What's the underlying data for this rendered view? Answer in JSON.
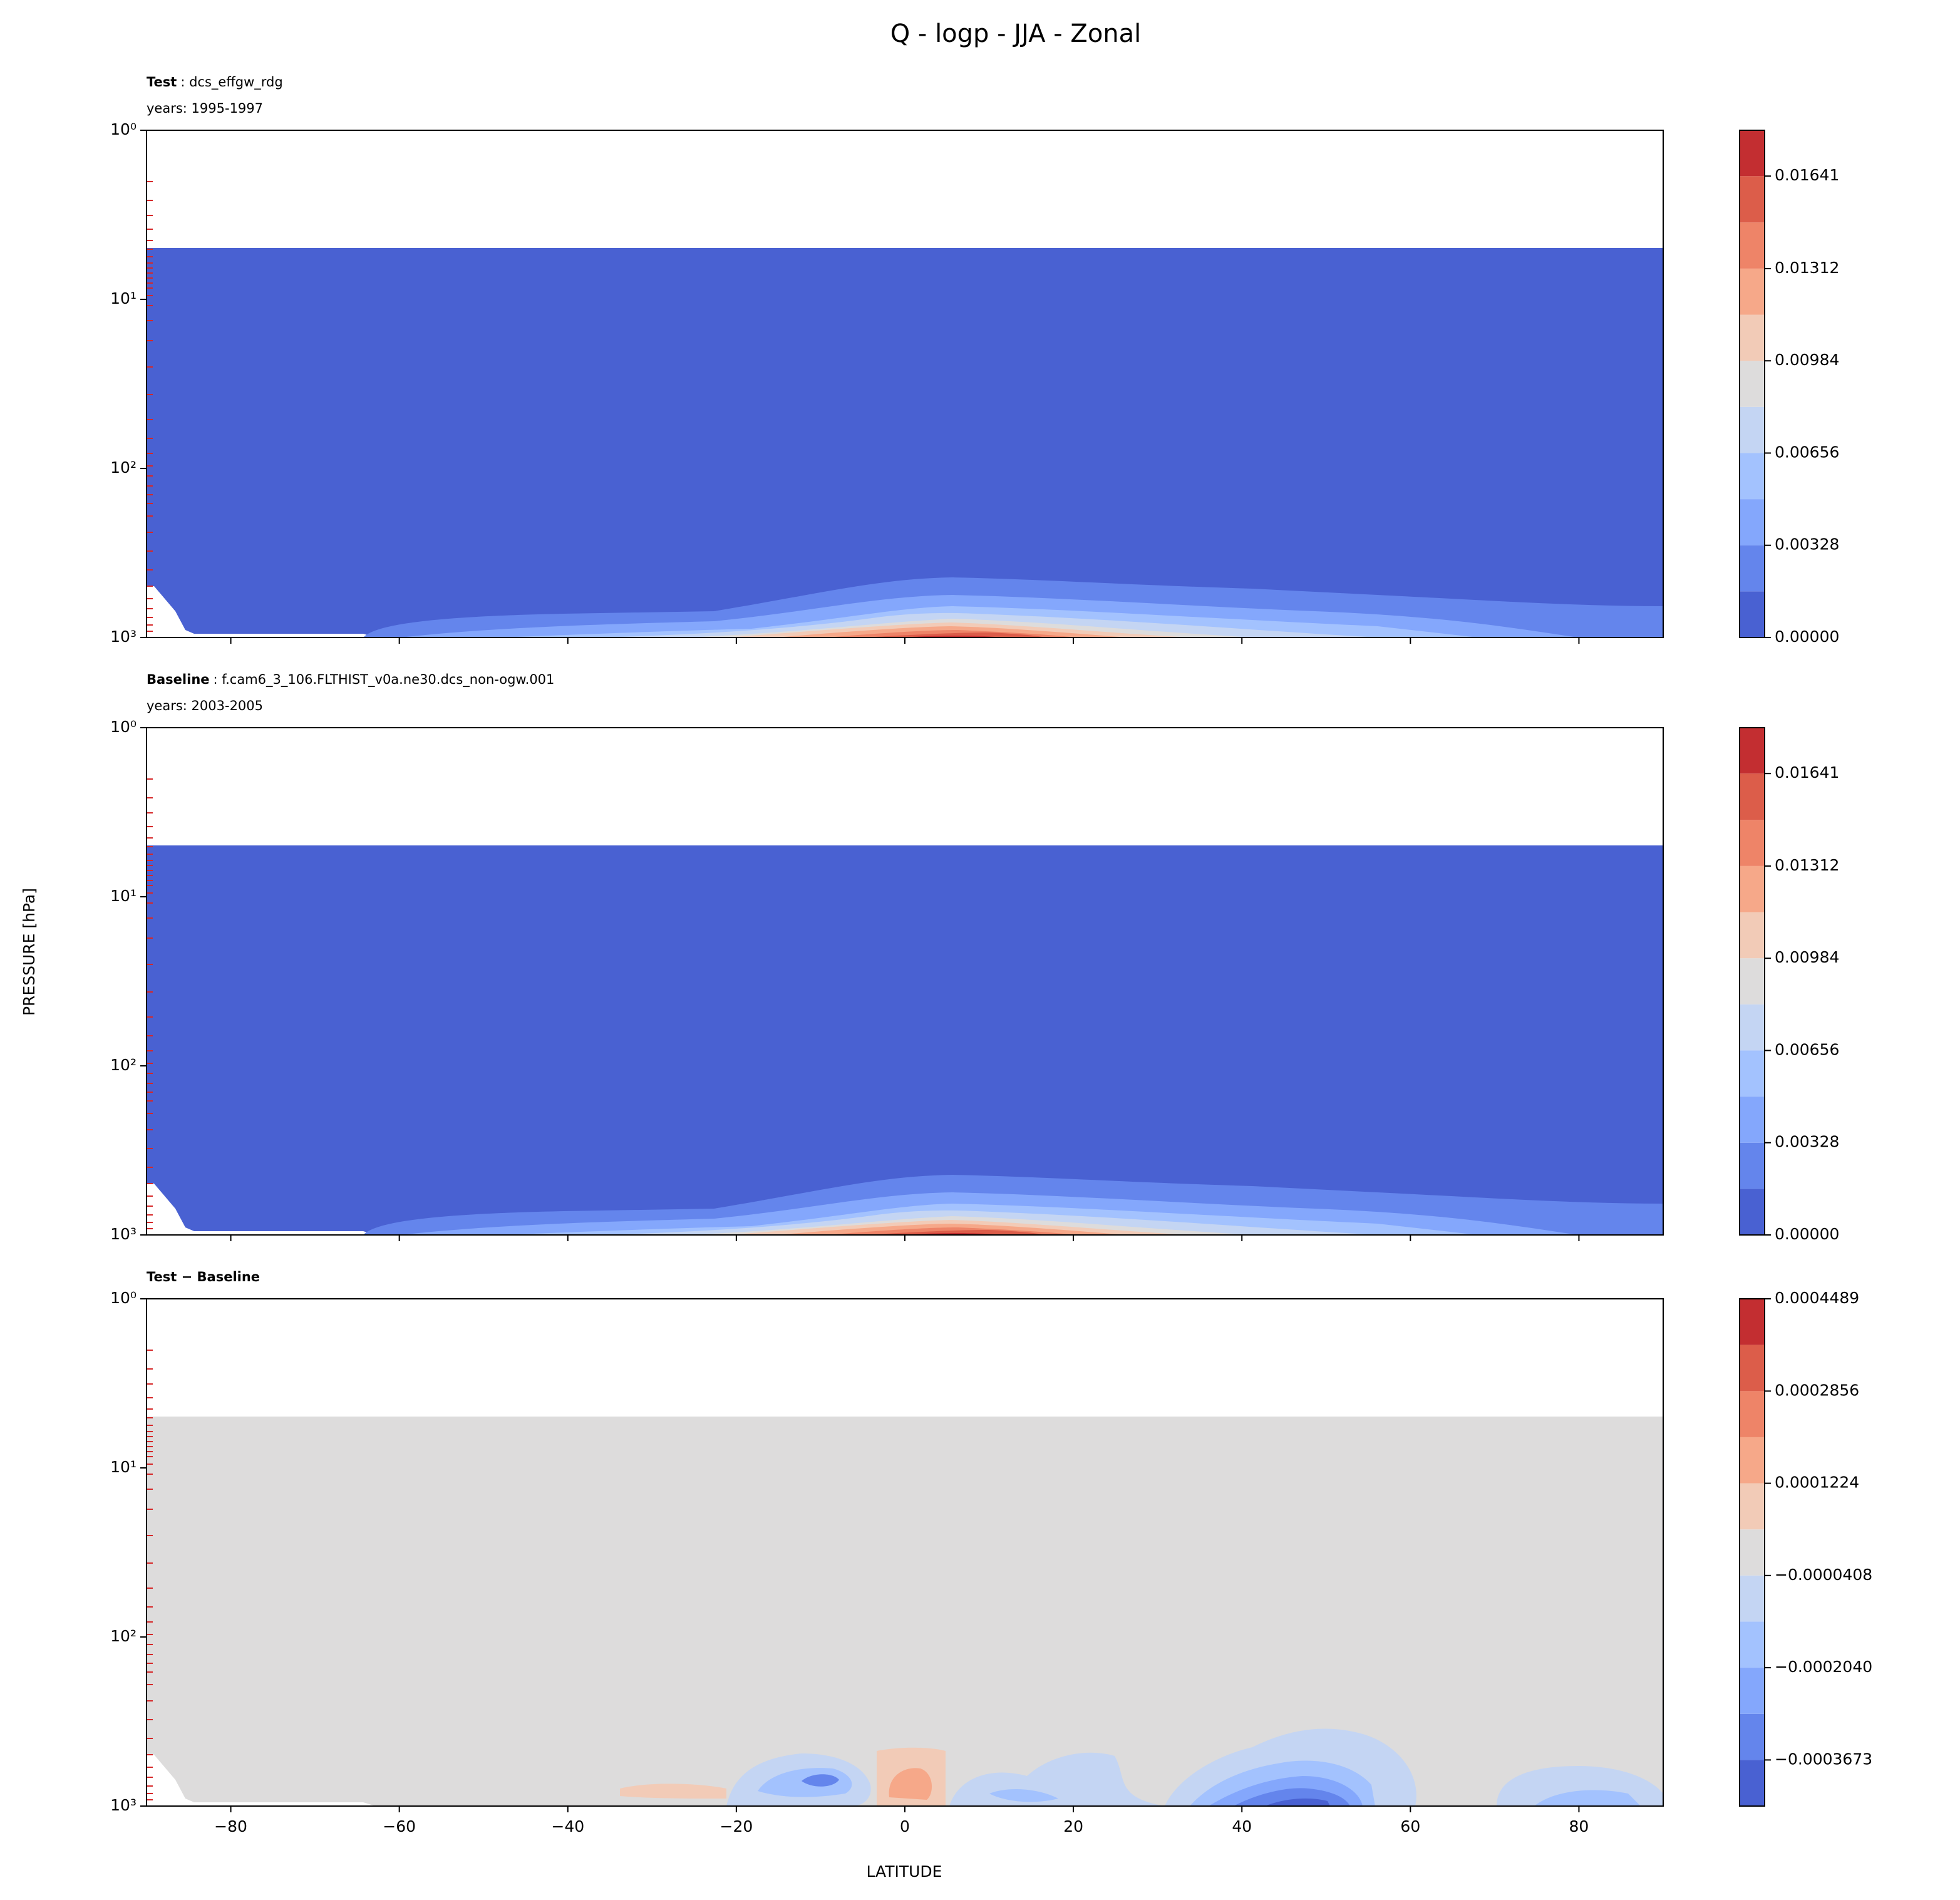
{
  "title": "Q - logp - JJA - Zonal",
  "ylabel": "PRESSURE [hPa]",
  "xlabel": "LATITUDE",
  "chart_data": [
    {
      "type": "contourf",
      "title_bold": "Test",
      "title_rest": ": dcs_effgw_rdg",
      "subtitle": "years: 1995-1997",
      "xlim": [
        -90,
        90
      ],
      "xticks": [
        {
          "value": -80,
          "label": "−80"
        },
        {
          "value": -60,
          "label": "−60"
        },
        {
          "value": -40,
          "label": "−40"
        },
        {
          "value": -20,
          "label": "−20"
        },
        0,
        20,
        40,
        60,
        80
      ],
      "ylim": [
        1000,
        1
      ],
      "log": true,
      "yticks": [
        {
          "value": 1,
          "label": "10⁰"
        },
        {
          "value": 10,
          "label": "10¹"
        },
        {
          "value": 100,
          "label": "10²"
        },
        {
          "value": 1000,
          "label": "10³"
        }
      ],
      "levels": [
        0,
        0.00164,
        0.00328,
        0.00492,
        0.00656,
        0.0082,
        0.00984,
        0.01148,
        0.01312,
        0.01476,
        0.01641,
        0.01804
      ],
      "colors": [
        "#4961d2",
        "#6485ec",
        "#84a7fc",
        "#a3c2fe",
        "#c4d5f3",
        "#dddcdc",
        "#f2cbb7",
        "#f6a889",
        "#ee8468",
        "#dc5d4a",
        "#c32e31"
      ],
      "cticks": [
        {
          "value": 0,
          "label": "0.00000"
        },
        {
          "value": 0.00328,
          "label": "0.00328"
        },
        {
          "value": 0.00656,
          "label": "0.00656"
        },
        {
          "value": 0.00984,
          "label": "0.00984"
        },
        {
          "value": 0.01312,
          "label": "0.01312"
        },
        0.01641
      ]
    },
    {
      "type": "contourf",
      "title_bold": "Baseline",
      "title_rest": ": f.cam6_3_106.FLTHIST_v0a.ne30.dcs_non-ogw.001",
      "subtitle": "years: 2003-2005",
      "xlim": [
        -90,
        90
      ],
      "xticks": [
        {
          "value": -80,
          "label": "−80"
        },
        {
          "value": -60,
          "label": "−60"
        },
        {
          "value": -40,
          "label": "−40"
        },
        {
          "value": -20,
          "label": "−20"
        },
        0,
        20,
        40,
        60,
        80
      ],
      "ylim": [
        1000,
        1
      ],
      "log": true,
      "yticks": [
        {
          "value": 1,
          "label": "10⁰"
        },
        {
          "value": 10,
          "label": "10¹"
        },
        {
          "value": 100,
          "label": "10²"
        },
        {
          "value": 1000,
          "label": "10³"
        }
      ],
      "levels": [
        0,
        0.00164,
        0.00328,
        0.00492,
        0.00656,
        0.0082,
        0.00984,
        0.01148,
        0.01312,
        0.01476,
        0.01641,
        0.01804
      ],
      "colors": [
        "#4961d2",
        "#6485ec",
        "#84a7fc",
        "#a3c2fe",
        "#c4d5f3",
        "#dddcdc",
        "#f2cbb7",
        "#f6a889",
        "#ee8468",
        "#dc5d4a",
        "#c32e31"
      ],
      "cticks": [
        {
          "value": 0,
          "label": "0.00000"
        },
        {
          "value": 0.00328,
          "label": "0.00328"
        },
        {
          "value": 0.00656,
          "label": "0.00656"
        },
        {
          "value": 0.00984,
          "label": "0.00984"
        },
        {
          "value": 0.01312,
          "label": "0.01312"
        },
        0.01641
      ]
    },
    {
      "type": "contourf",
      "title_bold": "Test − Baseline",
      "xlim": [
        -90,
        90
      ],
      "xticks": [
        {
          "value": -80,
          "label": "−80"
        },
        {
          "value": -60,
          "label": "−60"
        },
        {
          "value": -40,
          "label": "−40"
        },
        {
          "value": -20,
          "label": "−20"
        },
        0,
        20,
        40,
        60,
        80
      ],
      "ylim": [
        1000,
        1
      ],
      "log": true,
      "yticks": [
        {
          "value": 1,
          "label": "10⁰"
        },
        {
          "value": 10,
          "label": "10¹"
        },
        {
          "value": 100,
          "label": "10²"
        },
        {
          "value": 1000,
          "label": "10³"
        }
      ],
      "levels": [
        -0.0004489,
        -0.0003673,
        -0.0002857,
        -0.000204,
        -0.0001224,
        -4.08e-05,
        4.08e-05,
        0.0001224,
        0.000204,
        0.0002856,
        0.0003673,
        0.0004489
      ],
      "colors": [
        "#4961d2",
        "#6485ec",
        "#84a7fc",
        "#a3c2fe",
        "#c4d5f3",
        "#dddcdc",
        "#f2cbb7",
        "#f6a889",
        "#ee8468",
        "#dc5d4a",
        "#c32e31"
      ],
      "cticks": [
        {
          "value": -0.0003673,
          "label": "−0.0003673"
        },
        {
          "value": -0.000204,
          "label": "−0.0002040"
        },
        {
          "value": -4.08e-05,
          "label": "−0.0000408"
        },
        0.0001224,
        0.0002856,
        0.0004489
      ]
    }
  ]
}
